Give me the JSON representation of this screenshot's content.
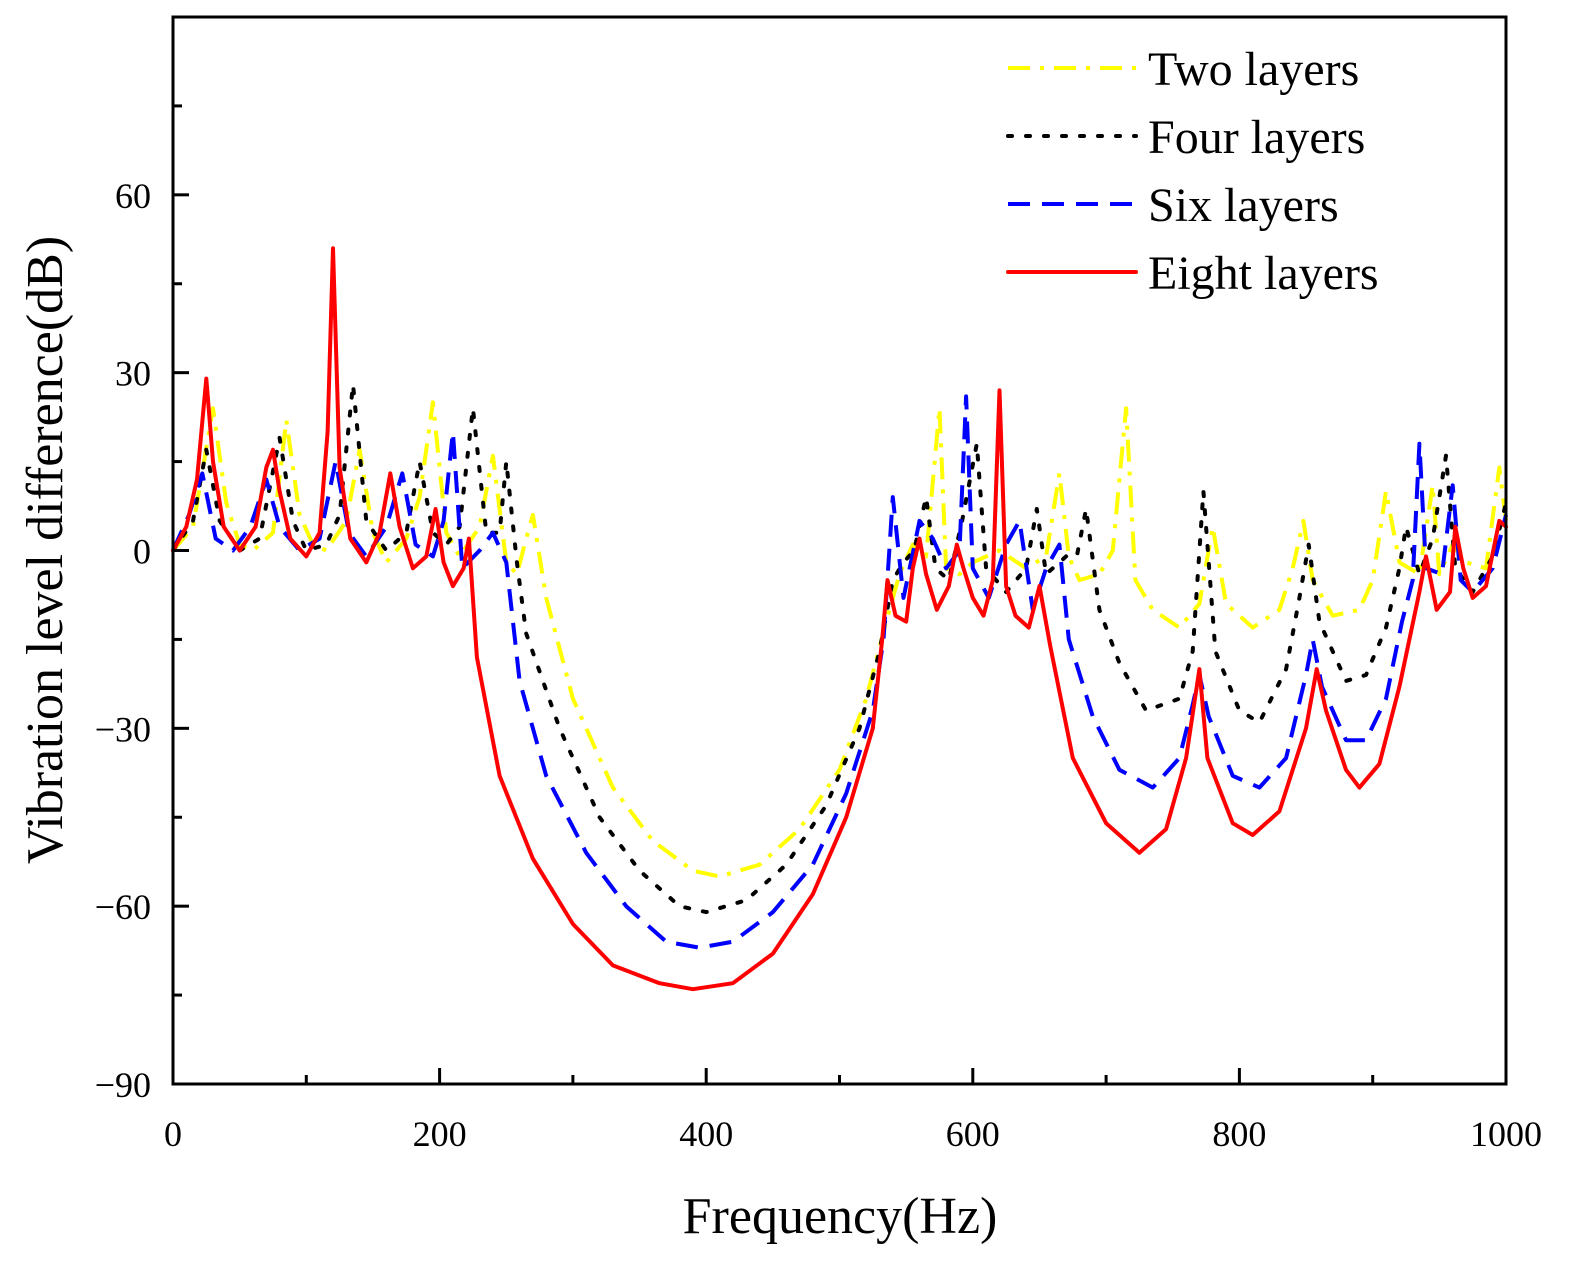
{
  "chart_data": {
    "type": "line",
    "title": "",
    "xlabel": "Frequency(Hz)",
    "ylabel": "Vibration level difference(dB)",
    "xlim": [
      0,
      1000
    ],
    "ylim": [
      -90,
      90
    ],
    "x_ticks": [
      0,
      200,
      400,
      600,
      800,
      1000
    ],
    "y_ticks": [
      -90,
      -60,
      -30,
      0,
      30,
      60
    ],
    "x_tick_labels": [
      "0",
      "200",
      "400",
      "600",
      "800",
      "1000"
    ],
    "y_tick_labels": [
      "−90",
      "−60",
      "−30",
      "0",
      "30",
      "60"
    ],
    "grid": false,
    "legend_position": "top-right",
    "series": [
      {
        "name": "Two layers",
        "color": "#ffff00",
        "dash": "dashdot",
        "points": [
          [
            0,
            0
          ],
          [
            15,
            4
          ],
          [
            30,
            24
          ],
          [
            40,
            8
          ],
          [
            50,
            1
          ],
          [
            60,
            0
          ],
          [
            75,
            3
          ],
          [
            85,
            22
          ],
          [
            95,
            6
          ],
          [
            105,
            1
          ],
          [
            115,
            0
          ],
          [
            130,
            5
          ],
          [
            140,
            17
          ],
          [
            150,
            3
          ],
          [
            160,
            -2
          ],
          [
            175,
            2
          ],
          [
            185,
            9
          ],
          [
            195,
            25
          ],
          [
            205,
            3
          ],
          [
            215,
            -1
          ],
          [
            230,
            4
          ],
          [
            240,
            16
          ],
          [
            250,
            -2
          ],
          [
            258,
            -4
          ],
          [
            265,
            2
          ],
          [
            270,
            6
          ],
          [
            280,
            -8
          ],
          [
            300,
            -25
          ],
          [
            330,
            -40
          ],
          [
            360,
            -49
          ],
          [
            390,
            -54
          ],
          [
            410,
            -55
          ],
          [
            440,
            -53
          ],
          [
            470,
            -47
          ],
          [
            500,
            -37
          ],
          [
            520,
            -25
          ],
          [
            535,
            -12
          ],
          [
            545,
            -4
          ],
          [
            555,
            1
          ],
          [
            565,
            -1
          ],
          [
            575,
            24
          ],
          [
            580,
            -3
          ],
          [
            590,
            -4
          ],
          [
            600,
            -2
          ],
          [
            620,
            0
          ],
          [
            640,
            -3
          ],
          [
            655,
            -1
          ],
          [
            665,
            13
          ],
          [
            672,
            -1
          ],
          [
            680,
            -5
          ],
          [
            695,
            -4
          ],
          [
            705,
            0
          ],
          [
            715,
            24
          ],
          [
            722,
            -5
          ],
          [
            735,
            -10
          ],
          [
            755,
            -13
          ],
          [
            770,
            -9
          ],
          [
            780,
            4
          ],
          [
            790,
            -9
          ],
          [
            810,
            -13
          ],
          [
            830,
            -10
          ],
          [
            840,
            -3
          ],
          [
            848,
            5
          ],
          [
            855,
            -5
          ],
          [
            870,
            -11
          ],
          [
            890,
            -10
          ],
          [
            900,
            -5
          ],
          [
            910,
            10
          ],
          [
            920,
            -2
          ],
          [
            935,
            -4
          ],
          [
            945,
            11
          ],
          [
            950,
            -4
          ],
          [
            960,
            1
          ],
          [
            970,
            -2
          ],
          [
            985,
            -3
          ],
          [
            995,
            14
          ],
          [
            1000,
            5
          ]
        ]
      },
      {
        "name": "Four layers",
        "color": "#000000",
        "dash": "dotted",
        "points": [
          [
            0,
            0
          ],
          [
            15,
            5
          ],
          [
            25,
            17
          ],
          [
            35,
            5
          ],
          [
            50,
            0
          ],
          [
            65,
            2
          ],
          [
            80,
            19
          ],
          [
            90,
            5
          ],
          [
            100,
            0
          ],
          [
            115,
            1
          ],
          [
            125,
            6
          ],
          [
            135,
            28
          ],
          [
            145,
            5
          ],
          [
            160,
            0
          ],
          [
            175,
            3
          ],
          [
            185,
            15
          ],
          [
            195,
            3
          ],
          [
            205,
            1
          ],
          [
            215,
            4
          ],
          [
            225,
            24
          ],
          [
            235,
            3
          ],
          [
            245,
            3
          ],
          [
            250,
            15
          ],
          [
            258,
            -2
          ],
          [
            265,
            -14
          ],
          [
            290,
            -30
          ],
          [
            320,
            -45
          ],
          [
            350,
            -54
          ],
          [
            380,
            -60
          ],
          [
            400,
            -61
          ],
          [
            430,
            -59
          ],
          [
            460,
            -53
          ],
          [
            490,
            -43
          ],
          [
            515,
            -30
          ],
          [
            530,
            -17
          ],
          [
            540,
            -5
          ],
          [
            548,
            -2
          ],
          [
            556,
            0
          ],
          [
            565,
            9
          ],
          [
            572,
            -3
          ],
          [
            582,
            -5
          ],
          [
            592,
            5
          ],
          [
            603,
            18
          ],
          [
            610,
            -3
          ],
          [
            625,
            -7
          ],
          [
            640,
            -3
          ],
          [
            648,
            7
          ],
          [
            655,
            -4
          ],
          [
            670,
            -1
          ],
          [
            678,
            -1
          ],
          [
            685,
            7
          ],
          [
            695,
            -10
          ],
          [
            710,
            -19
          ],
          [
            730,
            -27
          ],
          [
            755,
            -25
          ],
          [
            765,
            -17
          ],
          [
            773,
            10
          ],
          [
            782,
            -17
          ],
          [
            800,
            -27
          ],
          [
            815,
            -29
          ],
          [
            835,
            -20
          ],
          [
            845,
            -8
          ],
          [
            852,
            1
          ],
          [
            860,
            -12
          ],
          [
            880,
            -22
          ],
          [
            895,
            -21
          ],
          [
            910,
            -13
          ],
          [
            920,
            -3
          ],
          [
            925,
            4
          ],
          [
            935,
            -4
          ],
          [
            945,
            2
          ],
          [
            955,
            16
          ],
          [
            962,
            -3
          ],
          [
            975,
            -7
          ],
          [
            990,
            -1
          ],
          [
            1000,
            8
          ]
        ]
      },
      {
        "name": "Six layers",
        "color": "#0000ff",
        "dash": "dashed",
        "points": [
          [
            0,
            0
          ],
          [
            12,
            6
          ],
          [
            22,
            13
          ],
          [
            32,
            2
          ],
          [
            45,
            0
          ],
          [
            58,
            4
          ],
          [
            70,
            12
          ],
          [
            80,
            4
          ],
          [
            95,
            0
          ],
          [
            110,
            2
          ],
          [
            122,
            15
          ],
          [
            132,
            3
          ],
          [
            145,
            -1
          ],
          [
            160,
            4
          ],
          [
            172,
            13
          ],
          [
            182,
            1
          ],
          [
            195,
            -1
          ],
          [
            203,
            5
          ],
          [
            210,
            20
          ],
          [
            217,
            -3
          ],
          [
            230,
            0
          ],
          [
            240,
            3
          ],
          [
            250,
            -2
          ],
          [
            260,
            -22
          ],
          [
            280,
            -38
          ],
          [
            310,
            -51
          ],
          [
            340,
            -60
          ],
          [
            370,
            -66
          ],
          [
            395,
            -67
          ],
          [
            420,
            -66
          ],
          [
            450,
            -61
          ],
          [
            480,
            -53
          ],
          [
            505,
            -41
          ],
          [
            525,
            -27
          ],
          [
            533,
            -15
          ],
          [
            540,
            9
          ],
          [
            548,
            -8
          ],
          [
            560,
            5
          ],
          [
            570,
            2
          ],
          [
            580,
            -3
          ],
          [
            590,
            0
          ],
          [
            595,
            26
          ],
          [
            600,
            -3
          ],
          [
            612,
            -8
          ],
          [
            625,
            1
          ],
          [
            635,
            5
          ],
          [
            645,
            -10
          ],
          [
            655,
            -3
          ],
          [
            665,
            1
          ],
          [
            672,
            -15
          ],
          [
            690,
            -28
          ],
          [
            710,
            -37
          ],
          [
            735,
            -40
          ],
          [
            755,
            -35
          ],
          [
            765,
            -26
          ],
          [
            770,
            -21
          ],
          [
            777,
            -28
          ],
          [
            795,
            -38
          ],
          [
            815,
            -40
          ],
          [
            835,
            -35
          ],
          [
            850,
            -21
          ],
          [
            855,
            -15
          ],
          [
            862,
            -23
          ],
          [
            880,
            -32
          ],
          [
            895,
            -32
          ],
          [
            910,
            -25
          ],
          [
            922,
            -12
          ],
          [
            930,
            -5
          ],
          [
            935,
            18
          ],
          [
            940,
            -3
          ],
          [
            952,
            -4
          ],
          [
            960,
            11
          ],
          [
            966,
            -5
          ],
          [
            975,
            -7
          ],
          [
            990,
            -3
          ],
          [
            1000,
            6
          ]
        ]
      },
      {
        "name": "Eight layers",
        "color": "#ff0000",
        "dash": "solid",
        "points": [
          [
            0,
            0
          ],
          [
            10,
            4
          ],
          [
            18,
            12
          ],
          [
            25,
            29
          ],
          [
            30,
            15
          ],
          [
            38,
            4
          ],
          [
            50,
            0
          ],
          [
            62,
            4
          ],
          [
            70,
            14
          ],
          [
            75,
            17
          ],
          [
            80,
            10
          ],
          [
            88,
            2
          ],
          [
            100,
            -1
          ],
          [
            110,
            3
          ],
          [
            116,
            20
          ],
          [
            120,
            51
          ],
          [
            125,
            14
          ],
          [
            133,
            2
          ],
          [
            145,
            -2
          ],
          [
            155,
            3
          ],
          [
            163,
            13
          ],
          [
            170,
            4
          ],
          [
            180,
            -3
          ],
          [
            190,
            -1
          ],
          [
            197,
            7
          ],
          [
            203,
            -2
          ],
          [
            210,
            -6
          ],
          [
            218,
            -3
          ],
          [
            222,
            2
          ],
          [
            228,
            -18
          ],
          [
            245,
            -38
          ],
          [
            270,
            -52
          ],
          [
            300,
            -63
          ],
          [
            330,
            -70
          ],
          [
            365,
            -73
          ],
          [
            390,
            -74
          ],
          [
            420,
            -73
          ],
          [
            450,
            -68
          ],
          [
            480,
            -58
          ],
          [
            505,
            -45
          ],
          [
            525,
            -30
          ],
          [
            532,
            -15
          ],
          [
            536,
            -5
          ],
          [
            542,
            -11
          ],
          [
            550,
            -12
          ],
          [
            555,
            -3
          ],
          [
            560,
            2
          ],
          [
            565,
            -4
          ],
          [
            573,
            -10
          ],
          [
            582,
            -6
          ],
          [
            588,
            1
          ],
          [
            593,
            -3
          ],
          [
            600,
            -8
          ],
          [
            608,
            -11
          ],
          [
            615,
            -5
          ],
          [
            620,
            27
          ],
          [
            625,
            -6
          ],
          [
            632,
            -11
          ],
          [
            642,
            -13
          ],
          [
            650,
            -6
          ],
          [
            658,
            -16
          ],
          [
            675,
            -35
          ],
          [
            700,
            -46
          ],
          [
            725,
            -51
          ],
          [
            745,
            -47
          ],
          [
            760,
            -35
          ],
          [
            770,
            -20
          ],
          [
            776,
            -35
          ],
          [
            795,
            -46
          ],
          [
            810,
            -48
          ],
          [
            830,
            -44
          ],
          [
            850,
            -30
          ],
          [
            858,
            -20
          ],
          [
            865,
            -27
          ],
          [
            880,
            -37
          ],
          [
            890,
            -40
          ],
          [
            905,
            -36
          ],
          [
            920,
            -23
          ],
          [
            935,
            -7
          ],
          [
            940,
            -1
          ],
          [
            948,
            -10
          ],
          [
            958,
            -7
          ],
          [
            962,
            4
          ],
          [
            968,
            -3
          ],
          [
            975,
            -8
          ],
          [
            985,
            -6
          ],
          [
            995,
            5
          ],
          [
            1000,
            4
          ]
        ]
      }
    ]
  }
}
